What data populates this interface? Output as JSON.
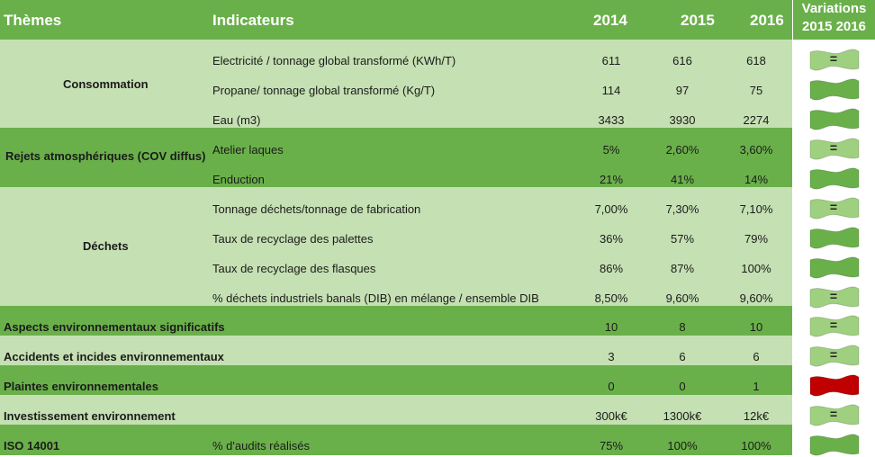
{
  "header": {
    "themes": "Thèmes",
    "indicators": "Indicateurs",
    "year1": "2014",
    "year2": "2015",
    "year3": "2016",
    "variations_line1": "Variations",
    "variations_line2": "2015 2016"
  },
  "colors": {
    "header_green": "#6ab04a",
    "light_green": "#c5e0b3",
    "flag_light": "#9fd07f",
    "flag_dark": "#6ab04a",
    "flag_red": "#c00000"
  },
  "rows": [
    {
      "indicator": "Electricité / tonnage global transformé (KWh/T)",
      "v2014": "611",
      "v2015": "616",
      "v2016": "618",
      "variation": "="
    },
    {
      "indicator": "Propane/ tonnage global transformé (Kg/T)",
      "v2014": "114",
      "v2015": "97",
      "v2016": "75",
      "variation": "down-good"
    },
    {
      "indicator": "Eau (m3)",
      "v2014": "3433",
      "v2015": "3930",
      "v2016": "2274",
      "variation": "down-good"
    },
    {
      "indicator": "Atelier laques",
      "v2014": "5%",
      "v2015": "2,60%",
      "v2016": "3,60%",
      "variation": "="
    },
    {
      "indicator": "Enduction",
      "v2014": "21%",
      "v2015": "41%",
      "v2016": "14%",
      "variation": "down-good"
    },
    {
      "indicator": "Tonnage déchets/tonnage de fabrication",
      "v2014": "7,00%",
      "v2015": "7,30%",
      "v2016": "7,10%",
      "variation": "="
    },
    {
      "indicator": "Taux de recyclage des palettes",
      "v2014": "36%",
      "v2015": "57%",
      "v2016": "79%",
      "variation": "up-good"
    },
    {
      "indicator": "Taux de recyclage des flasques",
      "v2014": "86%",
      "v2015": "87%",
      "v2016": "100%",
      "variation": "up-good"
    },
    {
      "indicator": "% déchets industriels banals (DIB) en mélange / ensemble DIB",
      "v2014": "8,50%",
      "v2015": "9,60%",
      "v2016": "9,60%",
      "variation": "="
    },
    {
      "indicator": "",
      "v2014": "10",
      "v2015": "8",
      "v2016": "10",
      "variation": "="
    },
    {
      "indicator": "",
      "v2014": "3",
      "v2015": "6",
      "v2016": "6",
      "variation": "="
    },
    {
      "indicator": "",
      "v2014": "0",
      "v2015": "0",
      "v2016": "1",
      "variation": "bad"
    },
    {
      "indicator": "",
      "v2014": "300k€",
      "v2015": "1300k€",
      "v2016": "12k€",
      "variation": "="
    },
    {
      "indicator": "% d'audits réalisés",
      "v2014": "75%",
      "v2015": "100%",
      "v2016": "100%",
      "variation": "up-good"
    }
  ],
  "themes": {
    "consommation": "Consommation",
    "rejets": "Rejets atmosphériques (COV diffus)",
    "dechets": "Déchets",
    "aspects": "Aspects environnementaux significatifs",
    "accidents": "Accidents et incides environnementaux",
    "plaintes": "Plaintes environnementales",
    "investissement": "Investissement environnement",
    "iso": "ISO 14001"
  }
}
